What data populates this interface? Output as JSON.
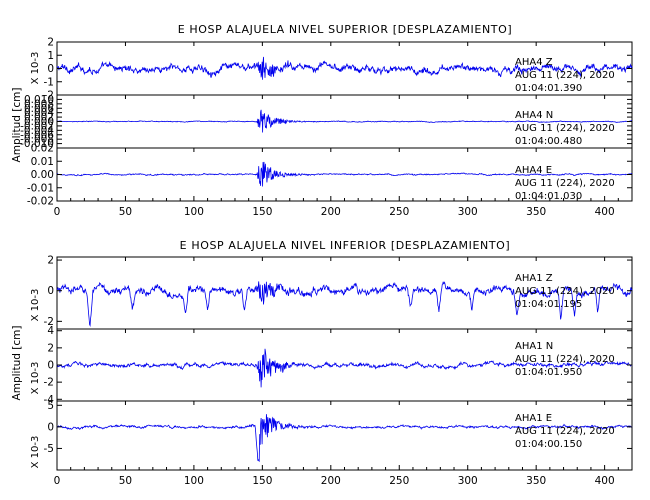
{
  "chart_data": [
    {
      "type": "line",
      "title": "E HOSP ALAJUELA NIVEL SUPERIOR [DESPLAZAMIENTO]",
      "ylabel": "Amplitud [cm]",
      "xlim": [
        0,
        420
      ],
      "x_ticks": [
        0,
        50,
        100,
        150,
        200,
        250,
        300,
        350,
        400
      ],
      "traces": [
        {
          "channel": "AHA4 Z",
          "annotation": [
            "AHA4    Z",
            "AUG 11 (224), 2020",
            "01:04:01.390"
          ],
          "multiplier": "X 10-3",
          "ylim": [
            -2,
            2
          ],
          "y_ticks": [
            2,
            1,
            0,
            -1,
            -2
          ],
          "y_tick_labels": [
            "2",
            "1",
            "0",
            "-1",
            "-2"
          ],
          "noise": 0.45,
          "burst": 1.6,
          "spikes": []
        },
        {
          "channel": "AHA4 N",
          "annotation": [
            "AHA4    N",
            "AUG 11 (224), 2020",
            "01:04:00.480"
          ],
          "multiplier": "",
          "ylim": [
            -0.012,
            0.012
          ],
          "y_ticks": [
            0.01,
            0.008,
            0.006,
            0.004,
            0.002,
            0.0,
            -0.002,
            -0.004,
            -0.006,
            -0.008,
            -0.01
          ],
          "y_tick_labels": [
            "0.010",
            "0.008",
            "0.006",
            "0.004",
            "0.002",
            "0.000",
            "-0.002",
            "-0.004",
            "-0.006",
            "-0.008",
            "-0.010"
          ],
          "noise": 0.0003,
          "burst": 0.0085,
          "spikes": []
        },
        {
          "channel": "AHA4 E",
          "annotation": [
            "AHA4    E",
            "AUG 11 (224), 2020",
            "01:04:01.030"
          ],
          "multiplier": "",
          "ylim": [
            -0.02,
            0.02
          ],
          "y_ticks": [
            0.02,
            0.01,
            0.0,
            -0.01,
            -0.02
          ],
          "y_tick_labels": [
            "0.02",
            "0.01",
            "0.00",
            "-0.01",
            "-0.02"
          ],
          "noise": 0.0008,
          "burst": 0.016,
          "spikes": []
        }
      ]
    },
    {
      "type": "line",
      "title": "E HOSP ALAJUELA NIVEL INFERIOR [DESPLAZAMIENTO]",
      "ylabel": "Amplitud [cm]",
      "xlim": [
        0,
        420
      ],
      "x_ticks": [
        0,
        50,
        100,
        150,
        200,
        250,
        300,
        350,
        400
      ],
      "traces": [
        {
          "channel": "AHA1 Z",
          "annotation": [
            "AHA1    Z",
            "AUG 11 (224), 2020",
            "01:04:01.195"
          ],
          "multiplier": "X 10-3",
          "ylim": [
            -2.5,
            2.2
          ],
          "y_ticks": [
            2,
            0,
            -2
          ],
          "y_tick_labels": [
            "2",
            "0",
            "-2"
          ],
          "noise": 0.4,
          "burst": 1.5,
          "spikes": [
            [
              24,
              -2.3
            ],
            [
              55,
              -1.2
            ],
            [
              94,
              -1.5
            ],
            [
              110,
              -1.2
            ],
            [
              137,
              -1.6
            ],
            [
              258,
              -1.2
            ],
            [
              279,
              -1.5
            ],
            [
              303,
              -1.3
            ],
            [
              336,
              -1.5
            ],
            [
              368,
              -2.1
            ],
            [
              378,
              -1.3
            ],
            [
              395,
              -1.7
            ]
          ]
        },
        {
          "channel": "AHA1 N",
          "annotation": [
            "AHA1    N",
            "AUG 11 (224), 2020",
            "01:04:01.950"
          ],
          "multiplier": "X 10-3",
          "ylim": [
            -4.2,
            4.2
          ],
          "y_ticks": [
            4,
            2,
            0,
            -2,
            -4
          ],
          "y_tick_labels": [
            "4",
            "2",
            "0",
            "-2",
            "-4"
          ],
          "noise": 0.35,
          "burst": 3.8,
          "spikes": []
        },
        {
          "channel": "AHA1 E",
          "annotation": [
            "AHA1    E",
            "AUG 11 (224), 2020",
            "01:04:00.150"
          ],
          "multiplier": "X 10-3",
          "ylim": [
            -10,
            6
          ],
          "y_ticks": [
            5,
            0,
            -5
          ],
          "y_tick_labels": [
            "5",
            "0",
            "-5"
          ],
          "noise": 0.45,
          "burst": 6.5,
          "spikes": [
            [
              147,
              -9.5
            ]
          ]
        }
      ]
    }
  ]
}
